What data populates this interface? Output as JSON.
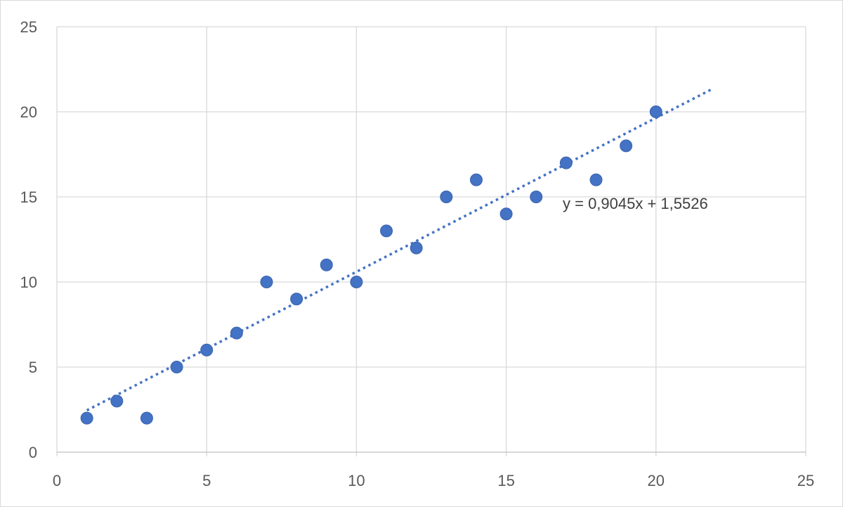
{
  "chart_data": {
    "type": "scatter",
    "title": "",
    "xlabel": "",
    "ylabel": "",
    "xlim": [
      0,
      25
    ],
    "ylim": [
      0,
      25
    ],
    "xticks": [
      0,
      5,
      10,
      15,
      20,
      25
    ],
    "yticks": [
      0,
      5,
      10,
      15,
      20,
      25
    ],
    "grid": true,
    "legend": "none",
    "series": [
      {
        "points": [
          {
            "x": 1,
            "y": 2
          },
          {
            "x": 2,
            "y": 3
          },
          {
            "x": 3,
            "y": 2
          },
          {
            "x": 4,
            "y": 5
          },
          {
            "x": 5,
            "y": 6
          },
          {
            "x": 6,
            "y": 7
          },
          {
            "x": 7,
            "y": 10
          },
          {
            "x": 8,
            "y": 9
          },
          {
            "x": 9,
            "y": 11
          },
          {
            "x": 10,
            "y": 10
          },
          {
            "x": 11,
            "y": 13
          },
          {
            "x": 12,
            "y": 12
          },
          {
            "x": 13,
            "y": 15
          },
          {
            "x": 14,
            "y": 16
          },
          {
            "x": 15,
            "y": 14
          },
          {
            "x": 16,
            "y": 15
          },
          {
            "x": 17,
            "y": 17
          },
          {
            "x": 18,
            "y": 16
          },
          {
            "x": 19,
            "y": 18
          },
          {
            "x": 20,
            "y": 20
          }
        ],
        "color": "#4472C4"
      }
    ],
    "trendline": {
      "type": "linear",
      "slope": 0.9045,
      "intercept": 1.5526,
      "x_range": [
        1,
        21.9
      ],
      "style": "dotted",
      "color": "#4472C4",
      "equation_label": "y = 0,9045x + 1,5526"
    }
  }
}
